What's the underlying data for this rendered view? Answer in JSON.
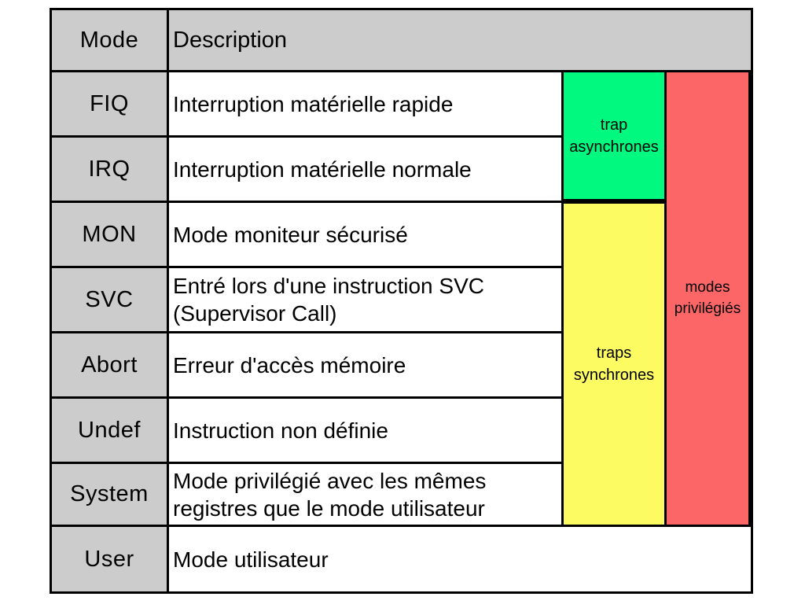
{
  "table": {
    "header": {
      "mode": "Mode",
      "description": "Description"
    },
    "rows": [
      {
        "mode": "FIQ",
        "description": "Interruption matérielle rapide"
      },
      {
        "mode": "IRQ",
        "description": "Interruption matérielle normale"
      },
      {
        "mode": "MON",
        "description": "Mode moniteur sécurisé"
      },
      {
        "mode": "SVC",
        "description": "Entré lors d'une instruction SVC (Supervisor Call)"
      },
      {
        "mode": "Abort",
        "description": "Erreur d'accès mémoire"
      },
      {
        "mode": "Undef",
        "description": "Instruction non définie"
      },
      {
        "mode": "System",
        "description": "Mode privilégié avec les mêmes registres que le mode utilisateur"
      },
      {
        "mode": "User",
        "description": "Mode utilisateur"
      }
    ]
  },
  "overlays": {
    "async_traps": {
      "label": "trap asynchrones",
      "color": "#00f97e"
    },
    "sync_traps": {
      "label": "traps synchrones",
      "color": "#fcfb62"
    },
    "priv_modes": {
      "label": "modes privilégiés",
      "color": "#fc6666"
    }
  },
  "colors": {
    "header_gray": "#cccccc",
    "border_black": "#000000",
    "cell_white": "#ffffff"
  }
}
